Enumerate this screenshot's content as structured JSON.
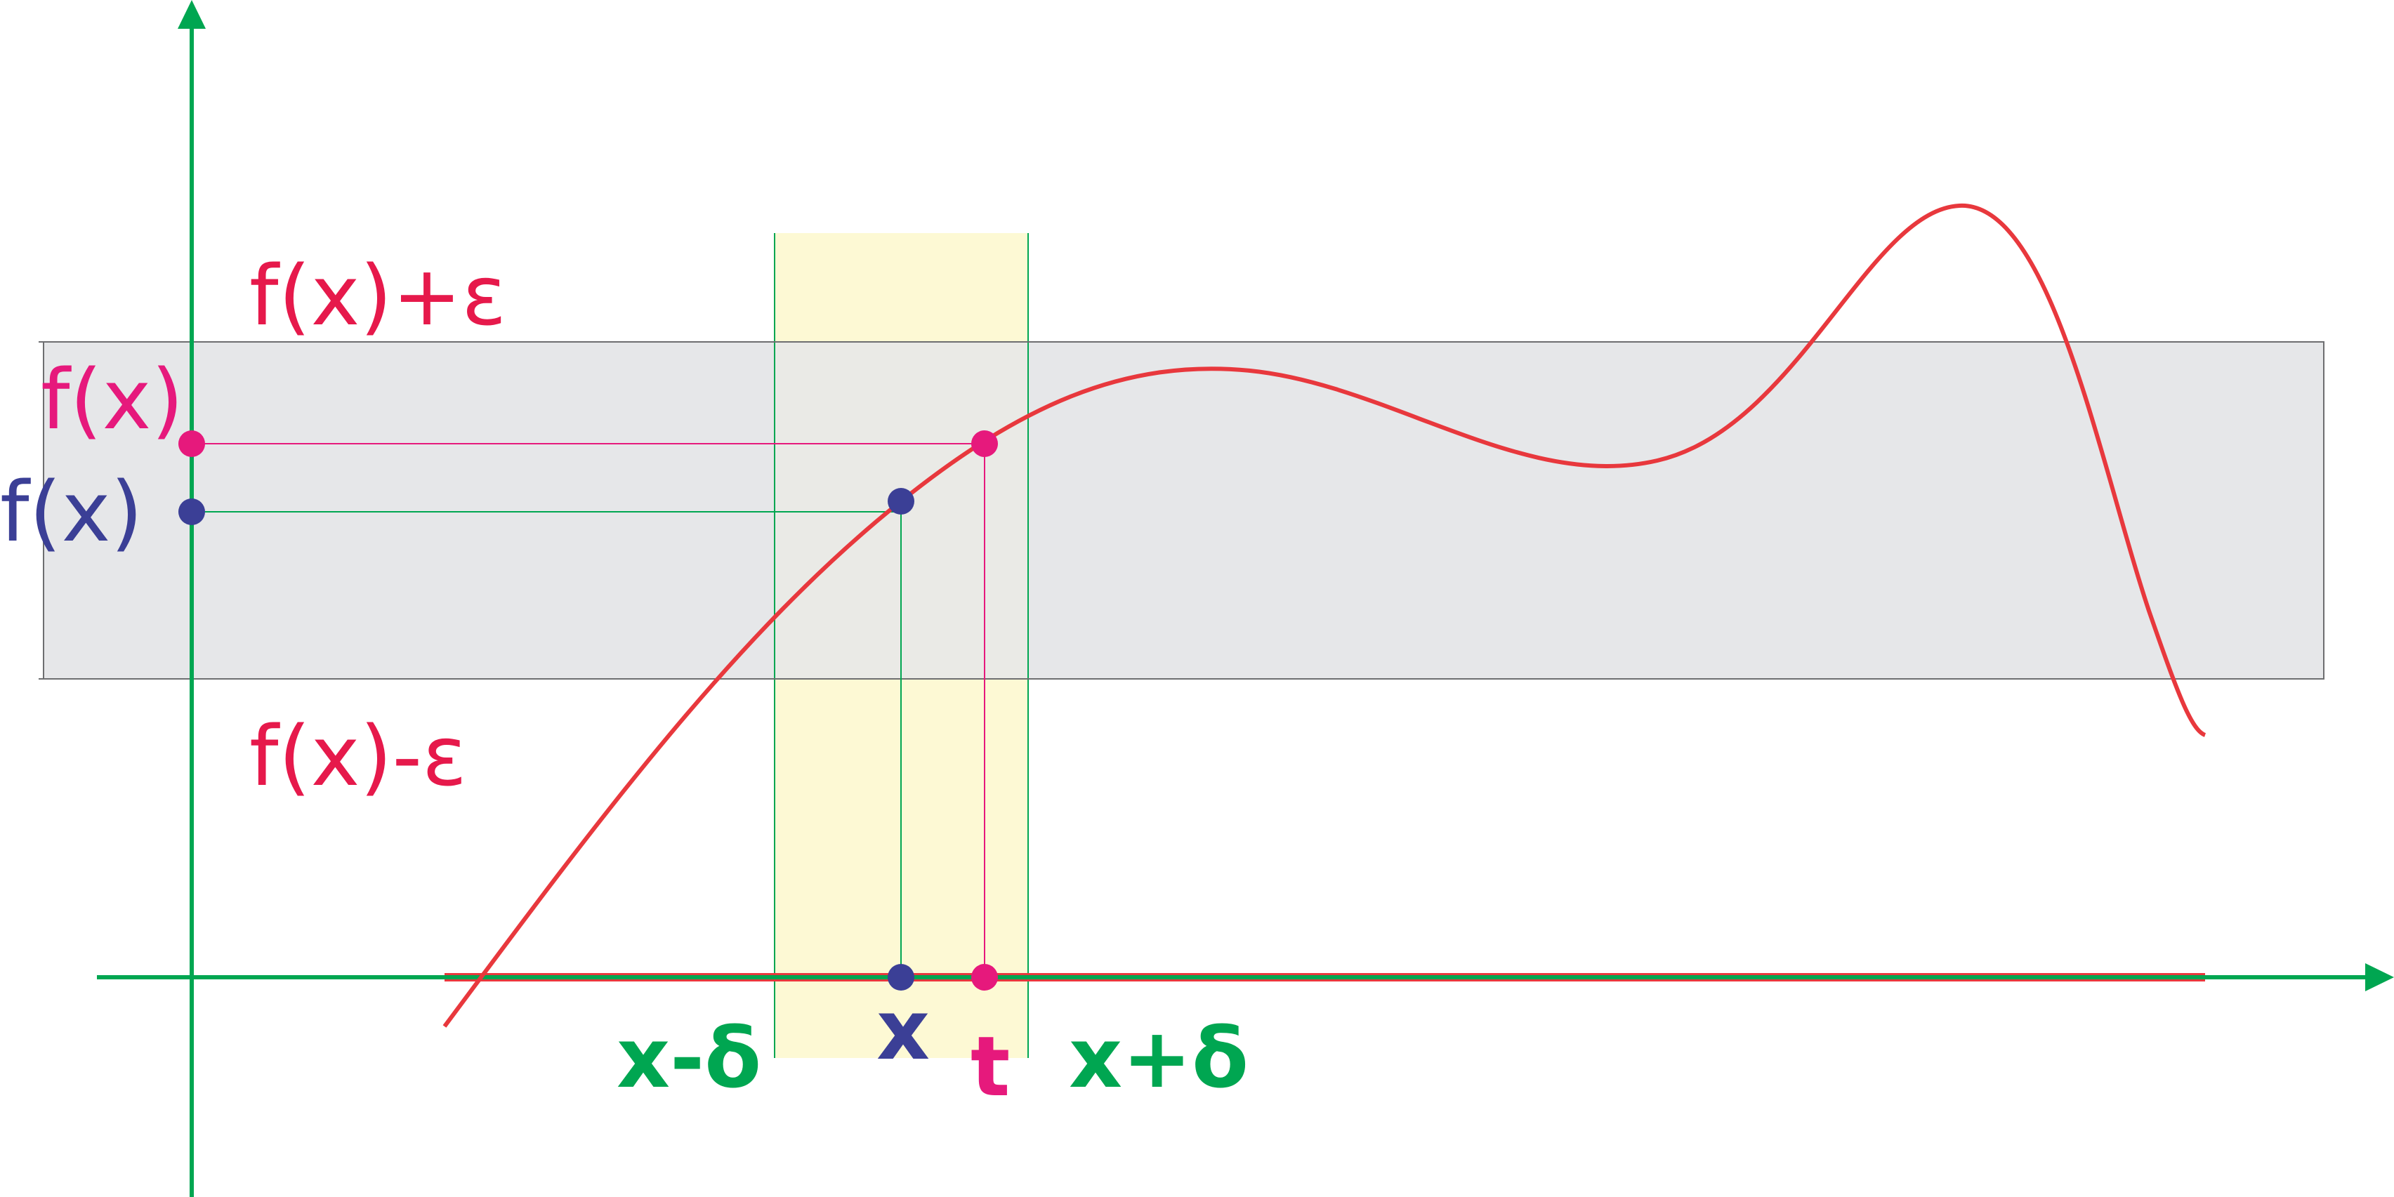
{
  "colors": {
    "axis": "#00a651",
    "curve": "#e8383d",
    "magenta": "#e6197c",
    "navy": "#3b3f96",
    "band_fill": "#e6e7e9",
    "band_edge": "#6d6e70",
    "delta_fill": "#fdf9d2",
    "background": "#ffffff"
  },
  "labels": {
    "fx_plus_eps": "f(x)+ε",
    "fx_minus_eps": "f(x)-ε",
    "ft_value": "f(x)",
    "fx_value": "f(x)",
    "x_minus_delta": "x-δ",
    "x_point": "x",
    "t_point": "t",
    "x_plus_delta": "x+δ"
  }
}
